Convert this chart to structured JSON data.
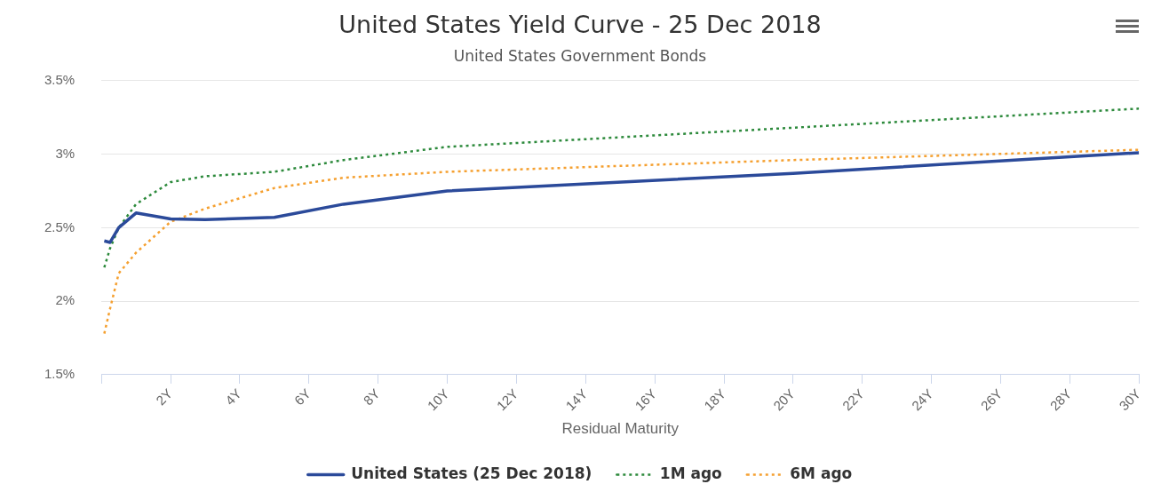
{
  "chart_data": {
    "type": "line",
    "title": "United States Yield Curve - 25 Dec 2018",
    "subtitle": "United States Government Bonds",
    "xlabel": "Residual Maturity",
    "x": [
      0.083,
      0.25,
      0.5,
      1,
      2,
      3,
      5,
      7,
      10,
      20,
      30
    ],
    "series": [
      {
        "name": "United States (25 Dec 2018)",
        "color": "#2b4a9a",
        "line_style": "solid",
        "values": [
          2.41,
          2.4,
          2.5,
          2.6,
          2.56,
          2.555,
          2.57,
          2.66,
          2.75,
          2.87,
          3.01
        ]
      },
      {
        "name": "1M ago",
        "color": "#2d8a3c",
        "line_style": "dotted",
        "values": [
          2.23,
          2.36,
          2.5,
          2.66,
          2.81,
          2.85,
          2.88,
          2.96,
          3.05,
          3.18,
          3.31
        ]
      },
      {
        "name": "6M ago",
        "color": "#f5a030",
        "line_style": "dotted",
        "values": [
          1.78,
          1.95,
          2.19,
          2.33,
          2.54,
          2.63,
          2.77,
          2.84,
          2.88,
          2.96,
          3.03
        ]
      }
    ],
    "xlim": [
      0,
      30
    ],
    "xticks": [
      {
        "value": 0,
        "label": null
      },
      {
        "value": 2,
        "label": "2Y"
      },
      {
        "value": 4,
        "label": "4Y"
      },
      {
        "value": 6,
        "label": "6Y"
      },
      {
        "value": 8,
        "label": "8Y"
      },
      {
        "value": 10,
        "label": "10Y"
      },
      {
        "value": 12,
        "label": "12Y"
      },
      {
        "value": 14,
        "label": "14Y"
      },
      {
        "value": 16,
        "label": "16Y"
      },
      {
        "value": 18,
        "label": "18Y"
      },
      {
        "value": 20,
        "label": "20Y"
      },
      {
        "value": 22,
        "label": "22Y"
      },
      {
        "value": 24,
        "label": "24Y"
      },
      {
        "value": 26,
        "label": "26Y"
      },
      {
        "value": 28,
        "label": "28Y"
      },
      {
        "value": 30,
        "label": "30Y"
      }
    ],
    "ylim": [
      1.5,
      3.5
    ],
    "yticks": [
      {
        "value": 1.5,
        "label": "1.5%"
      },
      {
        "value": 2,
        "label": "2%"
      },
      {
        "value": 2.5,
        "label": "2.5%"
      },
      {
        "value": 3,
        "label": "3%"
      },
      {
        "value": 3.5,
        "label": "3.5%"
      }
    ],
    "grid": "y",
    "legend": "bottom",
    "marker": "none"
  }
}
